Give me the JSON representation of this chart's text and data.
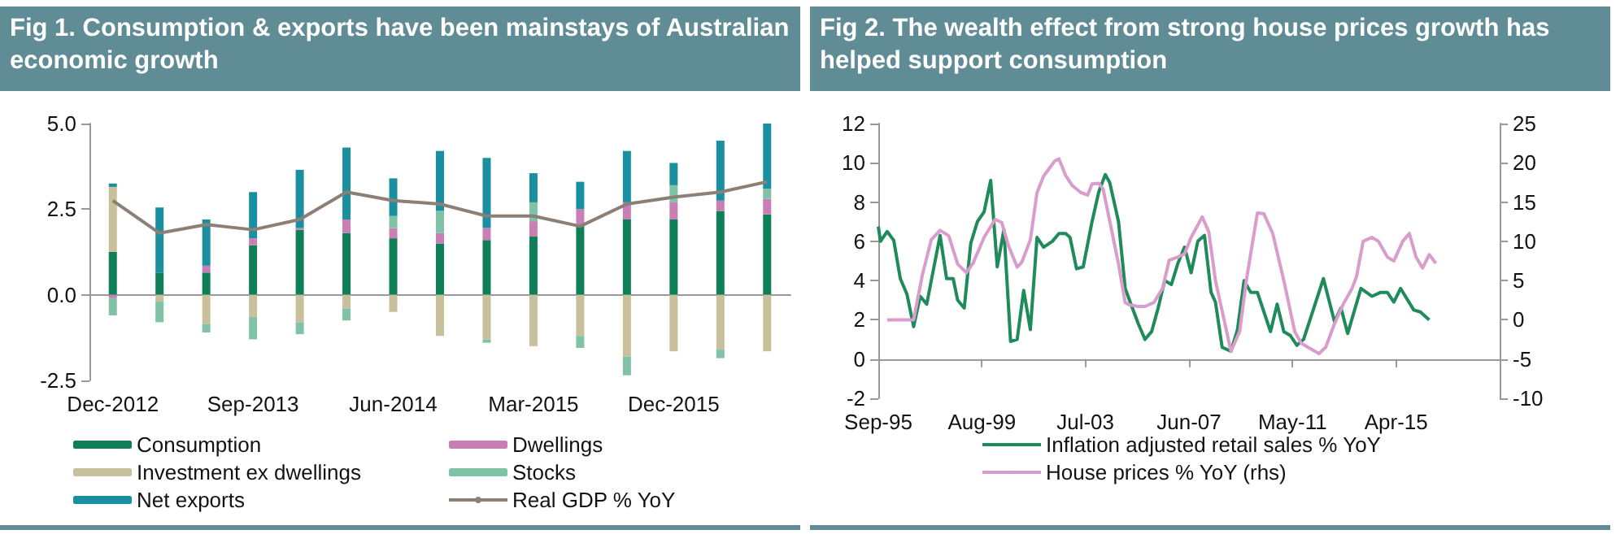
{
  "chart_data": [
    {
      "type": "bar",
      "title": "Fig 1. Consumption & exports have been mainstays of Australian economic growth",
      "stacked": true,
      "legend": "bottom",
      "categories": [
        "Dec-2012",
        null,
        null,
        "Sep-2013",
        null,
        null,
        "Jun-2014",
        null,
        null,
        "Mar-2015",
        null,
        null,
        "Dec-2015",
        null,
        null
      ],
      "ylim": [
        -2.5,
        5
      ],
      "yticks": [
        {
          "value": -2.5,
          "label": "-2.5"
        },
        {
          "value": 0,
          "label": "0.0"
        },
        {
          "value": 2.5,
          "label": "2.5"
        },
        {
          "value": 5,
          "label": "5.0"
        }
      ],
      "series": [
        {
          "name": "Consumption",
          "color": "#0e7f56",
          "values": [
            1.25,
            0.65,
            0.65,
            1.45,
            1.9,
            1.8,
            1.65,
            1.5,
            1.6,
            1.7,
            2.0,
            2.2,
            2.2,
            2.45,
            2.35
          ]
        },
        {
          "name": "Dwellings",
          "color": "#c97fb5",
          "values": [
            -0.1,
            0,
            0.2,
            0.2,
            0.05,
            0.4,
            0.3,
            0.3,
            0.35,
            0.45,
            0.5,
            0.5,
            0.5,
            0.3,
            0.45
          ]
        },
        {
          "name": "Investment ex dwellings",
          "color": "#c8c09a",
          "values": [
            1.9,
            -0.2,
            -0.85,
            -0.65,
            -0.8,
            -0.4,
            -0.5,
            -1.2,
            -1.3,
            -1.5,
            -1.2,
            -1.8,
            -1.65,
            -1.6,
            -1.65
          ]
        },
        {
          "name": "Stocks",
          "color": "#7fc2a6",
          "values": [
            -0.5,
            -0.6,
            -0.25,
            -0.65,
            -0.35,
            -0.35,
            0.35,
            0.65,
            -0.1,
            0.55,
            -0.35,
            -0.55,
            0.5,
            -0.25,
            0.3
          ]
        },
        {
          "name": "Net exports",
          "color": "#1a8fa0",
          "values": [
            0.1,
            1.9,
            1.35,
            1.35,
            1.7,
            2.1,
            1.1,
            1.75,
            2.05,
            0.85,
            0.8,
            1.5,
            0.65,
            1.75,
            1.9
          ]
        },
        {
          "name": "Real GDP % YoY",
          "type": "line",
          "color": "#8c7f76",
          "values": [
            2.75,
            1.8,
            2.05,
            1.9,
            2.2,
            3.0,
            2.75,
            2.65,
            2.3,
            2.3,
            2.0,
            2.65,
            2.85,
            3.0,
            3.3
          ]
        }
      ]
    },
    {
      "type": "line",
      "title": "Fig 2. The wealth effect from strong house prices growth has helped support consumption",
      "legend": "bottom",
      "xlim": [
        "1995-09",
        "2019-03"
      ],
      "xticks": [
        {
          "value": "1995-09",
          "label": "Sep-95"
        },
        {
          "value": "1999-08",
          "label": "Aug-99"
        },
        {
          "value": "2003-07",
          "label": "Jul-03"
        },
        {
          "value": "2007-06",
          "label": "Jun-07"
        },
        {
          "value": "2011-05",
          "label": "May-11"
        },
        {
          "value": "2015-04",
          "label": "Apr-15"
        }
      ],
      "ylim": [
        -2,
        12
      ],
      "yticks": [
        -2,
        0,
        2,
        4,
        6,
        8,
        10,
        12
      ],
      "y2lim": [
        -10,
        25
      ],
      "y2ticks": [
        -10,
        -5,
        0,
        5,
        10,
        15,
        20,
        25
      ],
      "series": [
        {
          "name": "Inflation adjusted retail sales % YoY",
          "color": "#1f8a5a",
          "x": [
            "1995-09",
            "1995-10",
            "1996-01",
            "1996-04",
            "1996-07",
            "1996-10",
            "1997-01",
            "1997-04",
            "1997-07",
            "1998-01",
            "1998-04",
            "1998-07",
            "1998-09",
            "1998-12",
            "1999-03",
            "1999-06",
            "1999-09",
            "1999-12",
            "2000-03",
            "2000-06",
            "2000-09",
            "2000-12",
            "2001-03",
            "2001-06",
            "2001-09",
            "2001-12",
            "2002-04",
            "2002-07",
            "2002-10",
            "2002-12",
            "2003-03",
            "2003-06",
            "2003-10",
            "2004-01",
            "2004-04",
            "2004-06",
            "2004-10",
            "2005-01",
            "2005-03",
            "2005-07",
            "2005-10",
            "2006-01",
            "2006-04",
            "2006-07",
            "2006-10",
            "2007-01",
            "2007-04",
            "2007-07",
            "2007-10",
            "2008-01",
            "2008-04",
            "2008-06",
            "2008-09",
            "2009-01",
            "2009-04",
            "2009-07",
            "2009-10",
            "2010-01",
            "2010-07",
            "2010-10",
            "2011-01",
            "2011-04",
            "2011-07",
            "2011-10",
            "2012-07",
            "2012-12",
            "2013-03",
            "2013-06",
            "2013-12",
            "2014-05",
            "2014-09",
            "2014-12",
            "2015-03",
            "2015-06",
            "2015-12",
            "2016-03",
            "2016-07"
          ],
          "values": [
            6.75,
            6.0,
            6.5,
            6.05,
            4.1,
            3.3,
            1.65,
            3.2,
            2.8,
            6.3,
            4.1,
            4.1,
            3.0,
            2.6,
            5.9,
            7.0,
            7.5,
            9.1,
            4.7,
            6.6,
            0.9,
            1.0,
            3.5,
            1.5,
            6.2,
            5.7,
            6.0,
            6.4,
            6.4,
            6.2,
            4.6,
            4.7,
            7.0,
            8.5,
            9.4,
            9.0,
            7.0,
            3.6,
            3.0,
            1.8,
            1.0,
            1.4,
            2.6,
            4.0,
            3.8,
            4.9,
            5.7,
            4.4,
            6.0,
            6.3,
            3.4,
            2.9,
            0.6,
            0.4,
            1.5,
            4.0,
            3.4,
            3.4,
            1.4,
            2.8,
            1.4,
            1.2,
            0.7,
            1.0,
            4.1,
            1.9,
            2.6,
            1.3,
            3.6,
            3.2,
            3.4,
            3.4,
            2.9,
            3.6,
            2.5,
            2.4,
            2.0
          ]
        },
        {
          "name": "House prices % YoY (rhs)",
          "color": "#d99ccc",
          "axis": "y2",
          "x": [
            "1996-01",
            "1997-01",
            "1997-05",
            "1997-09",
            "1998-01",
            "1998-05",
            "1998-09",
            "1999-01",
            "1999-04",
            "1999-09",
            "2000-02",
            "2000-05",
            "2000-08",
            "2000-12",
            "2001-02",
            "2001-06",
            "2001-09",
            "2001-12",
            "2002-05",
            "2002-07",
            "2002-10",
            "2003-01",
            "2003-05",
            "2003-08",
            "2003-10",
            "2004-01",
            "2004-03",
            "2004-06",
            "2004-10",
            "2005-01",
            "2005-03",
            "2005-07",
            "2005-10",
            "2006-02",
            "2006-06",
            "2006-09",
            "2007-01",
            "2007-04",
            "2007-07",
            "2007-12",
            "2008-03",
            "2008-06",
            "2009-01",
            "2009-05",
            "2009-08",
            "2010-01",
            "2010-04",
            "2010-08",
            "2011-01",
            "2011-06",
            "2011-09",
            "2011-12",
            "2012-05",
            "2012-08",
            "2012-12",
            "2013-04",
            "2013-08",
            "2013-10",
            "2014-01",
            "2014-05",
            "2014-08",
            "2014-12",
            "2015-03",
            "2015-07",
            "2015-10",
            "2016-01",
            "2016-04",
            "2016-07",
            "2016-10"
          ],
          "values": [
            0,
            0,
            5.7,
            10.2,
            11.4,
            10.7,
            7.1,
            6.0,
            7.2,
            10.5,
            12.8,
            12.4,
            9.5,
            6.7,
            7.3,
            10.2,
            16.2,
            18.3,
            20.2,
            20.5,
            18.4,
            17.1,
            16.2,
            15.9,
            17.3,
            17.4,
            16.7,
            12.6,
            7.1,
            2.2,
            1.9,
            1.7,
            1.7,
            2.2,
            4.0,
            7.6,
            8.0,
            8.4,
            10.5,
            13.1,
            11.2,
            5.0,
            -4.0,
            -1.5,
            5.0,
            13.6,
            13.5,
            11.0,
            5.0,
            -1.5,
            -3.0,
            -3.5,
            -4.3,
            -3.5,
            -0.5,
            2.0,
            4.0,
            5.5,
            10.0,
            10.5,
            10.0,
            8.0,
            7.5,
            10.0,
            11.0,
            8.0,
            6.6,
            8.3,
            7.2
          ]
        }
      ]
    }
  ]
}
